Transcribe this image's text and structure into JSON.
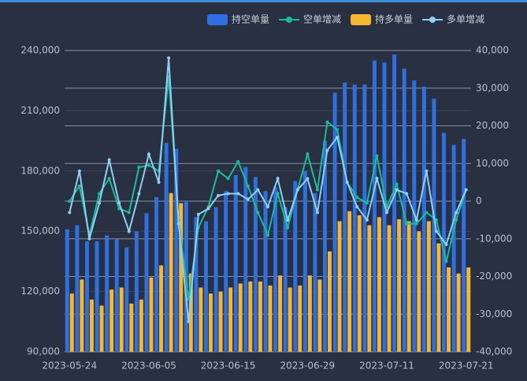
{
  "chart_data": {
    "type": "bar",
    "categories": [
      "2023-05-24",
      null,
      null,
      null,
      null,
      null,
      null,
      null,
      "2023-06-05",
      null,
      null,
      null,
      null,
      null,
      null,
      null,
      "2023-06-15",
      null,
      null,
      null,
      null,
      null,
      null,
      null,
      "2023-06-29",
      null,
      null,
      null,
      null,
      null,
      null,
      null,
      "2023-07-11",
      null,
      null,
      null,
      null,
      null,
      null,
      null,
      "2023-07-21"
    ],
    "series": [
      {
        "name": "持空单量",
        "type": "bar",
        "color": "#2f6fe0",
        "values": [
          151000,
          153000,
          145000,
          145000,
          148000,
          146000,
          142000,
          150000,
          159000,
          167000,
          194000,
          191000,
          165000,
          157000,
          155000,
          162000,
          170000,
          178000,
          182000,
          177000,
          170000,
          172000,
          162000,
          175000,
          180000,
          169000,
          195000,
          219000,
          224000,
          223000,
          223000,
          235000,
          234000,
          238000,
          231000,
          225000,
          222000,
          216000,
          199000,
          193000,
          196000
        ]
      },
      {
        "name": "空单增减",
        "type": "line",
        "axis": "y2",
        "color": "#1bbc9b",
        "values": [
          0,
          4000,
          -9000,
          2000,
          6000,
          -2000,
          -3000,
          9000,
          9500,
          8000,
          33000,
          -5000,
          -26000,
          -7000,
          -1500,
          8000,
          6000,
          10500,
          4000,
          -3000,
          -9000,
          2000,
          -7000,
          3000,
          12500,
          3000,
          21000,
          19000,
          5000,
          1000,
          -500,
          12000,
          -1500,
          4500,
          -6000,
          -6000,
          -3000,
          -5000,
          -16000,
          -5000,
          3000
        ]
      },
      {
        "name": "持多单量",
        "type": "bar",
        "color": "#f5b731",
        "values": [
          119000,
          126000,
          116000,
          113000,
          121000,
          122000,
          114000,
          116000,
          127000,
          133000,
          169000,
          164000,
          129000,
          122000,
          119000,
          120000,
          122000,
          124000,
          125000,
          125000,
          123000,
          128000,
          122000,
          123000,
          128000,
          126000,
          140000,
          155000,
          160000,
          158000,
          153000,
          157000,
          153000,
          156000,
          155000,
          150000,
          155000,
          144000,
          132000,
          129000,
          132000
        ]
      },
      {
        "name": "多单增减",
        "type": "line",
        "axis": "y2",
        "color": "#8dd0f5",
        "values": [
          -3000,
          8000,
          -10000,
          -500,
          11000,
          -500,
          -8000,
          2000,
          12500,
          5000,
          38000,
          -6000,
          -32000,
          -3500,
          -2000,
          1500,
          2000,
          2000,
          500,
          3000,
          -1500,
          6000,
          -5000,
          3000,
          6000,
          -3000,
          13500,
          17000,
          5000,
          -1500,
          -5000,
          6000,
          -3000,
          3000,
          2000,
          -5000,
          8000,
          -8000,
          -11500,
          -3000,
          3000
        ]
      }
    ],
    "ylim": [
      90000,
      240000
    ],
    "yticks": [
      {
        "value": 90000,
        "label": "90,000"
      },
      {
        "value": 120000,
        "label": "120,000"
      },
      {
        "value": 150000,
        "label": "150,000"
      },
      {
        "value": 180000,
        "label": "180,000"
      },
      {
        "value": 210000,
        "label": "210,000"
      },
      {
        "value": 240000,
        "label": "240,000"
      }
    ],
    "y2lim": [
      -40000,
      40000
    ],
    "y2ticks": [
      {
        "value": -40000,
        "label": "-40,000"
      },
      {
        "value": -30000,
        "label": "-30,000"
      },
      {
        "value": -20000,
        "label": "-20,000"
      },
      {
        "value": -10000,
        "label": "-10,000"
      },
      0,
      {
        "value": 10000,
        "label": "10,000"
      },
      {
        "value": 20000,
        "label": "20,000"
      },
      {
        "value": 30000,
        "label": "30,000"
      },
      {
        "value": 40000,
        "label": "40,000"
      }
    ],
    "grid": true,
    "legend": "top-right"
  }
}
